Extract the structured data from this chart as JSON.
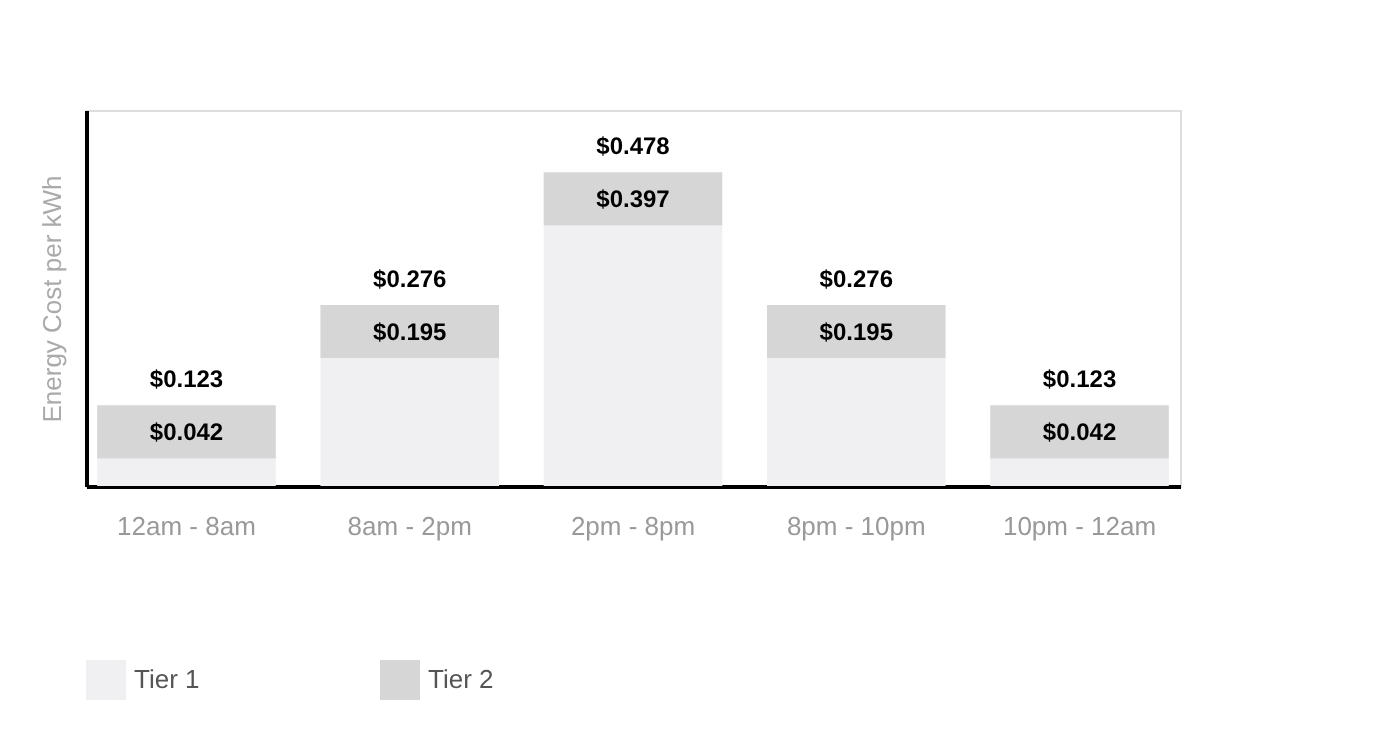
{
  "chart_data": {
    "type": "bar",
    "stacked": true,
    "ylabel": "Energy Cost per kWh",
    "categories": [
      "12am - 8am",
      "8am - 2pm",
      "2pm - 8pm",
      "8pm - 10pm",
      "10pm - 12am"
    ],
    "series": [
      {
        "name": "Tier 1",
        "color": "#f0f0f2",
        "values": [
          0.042,
          0.195,
          0.397,
          0.195,
          0.042
        ],
        "value_labels": [
          "$0.042",
          "$0.195",
          "$0.397",
          "$0.195",
          "$0.042"
        ]
      },
      {
        "name": "Tier 2",
        "color": "#d6d6d6",
        "values": [
          0.081,
          0.081,
          0.081,
          0.081,
          0.081
        ]
      }
    ],
    "totals": [
      "$0.123",
      "$0.276",
      "$0.478",
      "$0.276",
      "$0.123"
    ],
    "ylim": [
      0,
      0.573
    ],
    "tick_labels": "x",
    "grid": false,
    "legend": "bottom"
  }
}
